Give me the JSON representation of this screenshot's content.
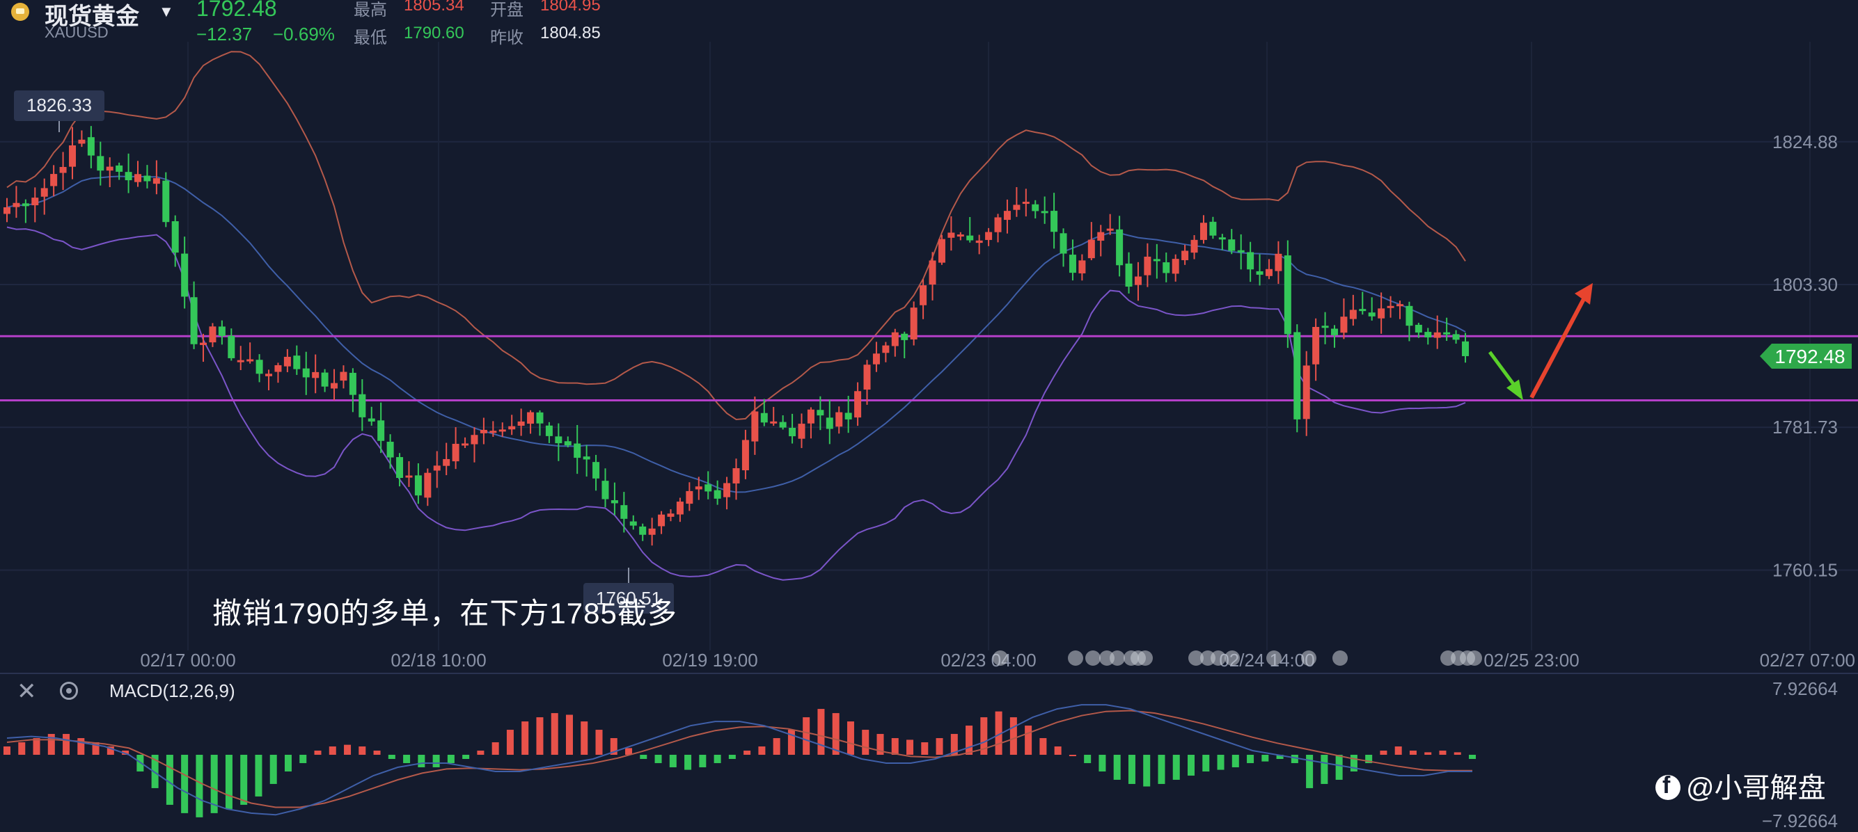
{
  "header": {
    "instrument": "现货黄金",
    "symbol": "XAUUSD",
    "last_price": "1792.48",
    "change": "−12.37",
    "change_pct": "−0.69%",
    "high_label": "最高",
    "high": "1805.34",
    "open_label": "开盘",
    "open": "1804.95",
    "low_label": "最低",
    "low": "1790.60",
    "prev_close_label": "昨收",
    "prev_close": "1804.85"
  },
  "annotation_text": "撤销1790的多单，在下方1785截多",
  "watermark": "@小哥解盘",
  "colors": {
    "up": "#e8524a",
    "down": "#34c759",
    "bollinger": "#b4594a",
    "bollinger_lower": "#7b55c9",
    "middle": "#3f5fa8",
    "level_lines": "#b43fc8",
    "background": "#141b2d"
  },
  "chart_data": [
    {
      "type": "candlestick",
      "y_ticks": [
        "1824.88",
        "1803.30",
        "1781.73",
        "1760.15"
      ],
      "x_ticks": [
        "02/17 00:00",
        "02/18 10:00",
        "02/19 19:00",
        "02/23 04:00",
        "02/24 14:00",
        "02/25 23:00",
        "02/27 07:00"
      ],
      "ylim": [
        1748,
        1840
      ],
      "price_tag": "1792.48",
      "high_marker": "1826.33",
      "low_marker": "1760.51",
      "horizontal_levels": [
        1795.5,
        1785.8
      ],
      "overlays": [
        "bollinger-bands"
      ],
      "close_path": [
        [
          0,
          1815
        ],
        [
          2,
          1816
        ],
        [
          4,
          1818
        ],
        [
          6,
          1822
        ],
        [
          8,
          1825
        ],
        [
          10,
          1821
        ],
        [
          12,
          1820
        ],
        [
          14,
          1820
        ],
        [
          16,
          1819
        ],
        [
          18,
          1808
        ],
        [
          20,
          1795
        ],
        [
          22,
          1796
        ],
        [
          24,
          1793
        ],
        [
          26,
          1791
        ],
        [
          28,
          1790
        ],
        [
          30,
          1792
        ],
        [
          32,
          1790
        ],
        [
          34,
          1788
        ],
        [
          36,
          1790
        ],
        [
          38,
          1784
        ],
        [
          40,
          1780
        ],
        [
          42,
          1775
        ],
        [
          44,
          1772
        ],
        [
          46,
          1776
        ],
        [
          48,
          1779
        ],
        [
          50,
          1780
        ],
        [
          52,
          1782
        ],
        [
          54,
          1782
        ],
        [
          56,
          1785
        ],
        [
          58,
          1780
        ],
        [
          60,
          1778
        ],
        [
          62,
          1777
        ],
        [
          64,
          1771
        ],
        [
          66,
          1768
        ],
        [
          68,
          1766
        ],
        [
          70,
          1768
        ],
        [
          72,
          1771
        ],
        [
          74,
          1772
        ],
        [
          76,
          1770
        ],
        [
          78,
          1775
        ],
        [
          80,
          1784
        ],
        [
          82,
          1783
        ],
        [
          84,
          1781
        ],
        [
          86,
          1784
        ],
        [
          88,
          1782
        ],
        [
          90,
          1784
        ],
        [
          92,
          1791
        ],
        [
          94,
          1795
        ],
        [
          96,
          1795
        ],
        [
          98,
          1803
        ],
        [
          100,
          1811
        ],
        [
          102,
          1810
        ],
        [
          104,
          1811
        ],
        [
          106,
          1813
        ],
        [
          108,
          1815
        ],
        [
          110,
          1815
        ],
        [
          112,
          1812
        ],
        [
          114,
          1806
        ],
        [
          116,
          1810
        ],
        [
          118,
          1811
        ],
        [
          120,
          1803
        ],
        [
          122,
          1808
        ],
        [
          124,
          1806
        ],
        [
          126,
          1809
        ],
        [
          128,
          1812
        ],
        [
          130,
          1811
        ],
        [
          132,
          1808
        ],
        [
          134,
          1805
        ],
        [
          136,
          1808
        ],
        [
          138,
          1784
        ],
        [
          140,
          1797
        ],
        [
          142,
          1796
        ],
        [
          144,
          1799
        ],
        [
          146,
          1799
        ],
        [
          148,
          1801
        ],
        [
          150,
          1798
        ],
        [
          152,
          1796
        ],
        [
          154,
          1797
        ],
        [
          156,
          1792.48
        ]
      ],
      "arrows": [
        {
          "direction": "down",
          "color": "green",
          "to_level": 1785.8
        },
        {
          "direction": "up",
          "color": "red",
          "to_level": 1803
        }
      ]
    },
    {
      "type": "macd",
      "label": "MACD(12,26,9)",
      "y_ticks": [
        "7.92664",
        "−7.92664"
      ],
      "ylim": [
        -7.92664,
        7.92664
      ],
      "histogram": [
        1,
        1.5,
        2,
        2.5,
        2.5,
        2,
        1.5,
        1,
        0.5,
        -2,
        -4,
        -6,
        -7,
        -7.5,
        -7,
        -6.5,
        -6,
        -5,
        -3.5,
        -2,
        -1,
        0.5,
        1,
        1.2,
        1,
        0.5,
        -0.5,
        -1,
        -1.5,
        -1.5,
        -1,
        -0.5,
        0.5,
        1.5,
        3,
        4,
        4.5,
        5,
        4.8,
        4,
        3,
        2,
        0.8,
        -0.5,
        -1,
        -1.5,
        -1.8,
        -1.5,
        -1,
        -0.5,
        0.5,
        1,
        2,
        3,
        4.5,
        5.5,
        5,
        4,
        3,
        2.5,
        2,
        1.8,
        1.5,
        2,
        2.5,
        3.5,
        4.5,
        5.2,
        4.5,
        3.5,
        2,
        1,
        0,
        -1,
        -2,
        -3,
        -3.5,
        -3.8,
        -3.5,
        -3,
        -2.5,
        -2,
        -1.8,
        -1.5,
        -1,
        -0.8,
        -0.5,
        -1,
        -4,
        -3.5,
        -3,
        -2,
        -1,
        0.5,
        1,
        0.5,
        0.3,
        0.5,
        0.3,
        -0.5
      ],
      "macd_line": [
        2,
        2.2,
        2,
        1.5,
        1,
        0,
        -2,
        -4,
        -5.5,
        -6.5,
        -7,
        -7.2,
        -6.5,
        -5.5,
        -4,
        -2.5,
        -1.5,
        -1,
        -1,
        -1.5,
        -2,
        -2,
        -1.5,
        -1,
        -0.5,
        0.5,
        1.5,
        2.5,
        3.5,
        4,
        4,
        3.5,
        2.5,
        1.5,
        0.5,
        -0.5,
        -1,
        -1,
        -0.5,
        0.5,
        1.5,
        3,
        4.5,
        5.5,
        6,
        6,
        5.5,
        4.5,
        3.5,
        2.5,
        1.5,
        0.5,
        0,
        -0.5,
        -1,
        -1.5,
        -2,
        -2.5,
        -2.5,
        -2,
        -2
      ],
      "signal_line": [
        1.5,
        1.8,
        1.8,
        1.6,
        1.3,
        0.8,
        -0.5,
        -2,
        -3.5,
        -4.8,
        -5.8,
        -6.3,
        -6.3,
        -5.8,
        -5,
        -4,
        -3,
        -2.2,
        -1.7,
        -1.6,
        -1.7,
        -1.8,
        -1.7,
        -1.4,
        -1,
        -0.4,
        0.4,
        1.3,
        2.2,
        2.9,
        3.3,
        3.4,
        3.1,
        2.5,
        1.8,
        1,
        0.3,
        -0.2,
        -0.3,
        0,
        0.7,
        1.7,
        2.8,
        3.9,
        4.7,
        5.2,
        5.3,
        5,
        4.4,
        3.7,
        2.9,
        2.1,
        1.4,
        0.8,
        0.2,
        -0.4,
        -0.9,
        -1.4,
        -1.8,
        -1.9,
        -1.9
      ]
    }
  ]
}
